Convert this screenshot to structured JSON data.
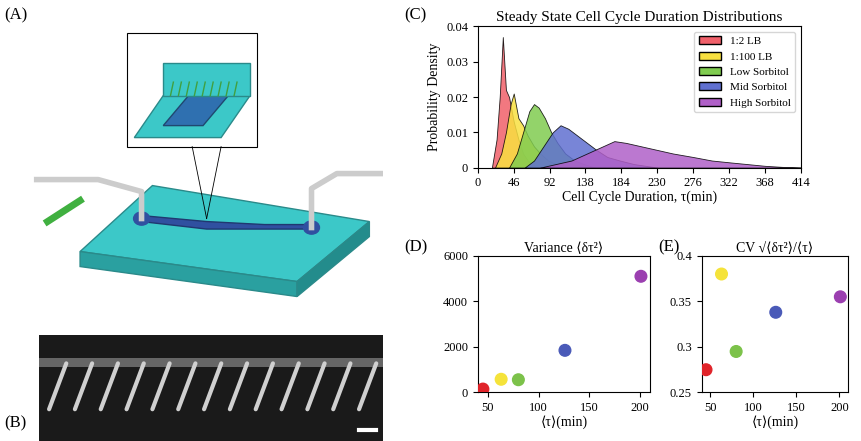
{
  "panel_labels": [
    "(A)",
    "(B)",
    "(C)",
    "(D)",
    "(E)"
  ],
  "chart_data": [
    {
      "type": "area",
      "title": "Steady State Cell Cycle Duration Distributions",
      "x_label": "Cell Cycle Duration, τ(min)",
      "y_label": "Probability Density",
      "xlim": [
        0,
        414
      ],
      "xticks": [
        0,
        46,
        92,
        138,
        184,
        230,
        276,
        322,
        368,
        414
      ],
      "ylim": [
        0,
        0.04
      ],
      "yticks": [
        0,
        0.01,
        0.02,
        0.03,
        0.04
      ],
      "legend": "upper right",
      "series": [
        {
          "name": "1:2 LB",
          "color": "#f0606a",
          "x": [
            18,
            24,
            28,
            32,
            36,
            40,
            46,
            52,
            58,
            64,
            70,
            76
          ],
          "values": [
            0,
            0.008,
            0.02,
            0.037,
            0.022,
            0.02,
            0.013,
            0.008,
            0.004,
            0.002,
            0.001,
            0
          ]
        },
        {
          "name": "1:100 LB",
          "color": "#f8e040",
          "x": [
            22,
            30,
            36,
            42,
            46,
            52,
            58,
            64,
            72,
            80,
            90,
            100,
            110
          ],
          "values": [
            0,
            0.004,
            0.01,
            0.018,
            0.021,
            0.014,
            0.012,
            0.009,
            0.006,
            0.004,
            0.002,
            0.001,
            0
          ]
        },
        {
          "name": "Low Sorbitol",
          "color": "#80cc50",
          "x": [
            40,
            50,
            58,
            66,
            72,
            78,
            86,
            94,
            102,
            112,
            124,
            136,
            150
          ],
          "values": [
            0,
            0.004,
            0.01,
            0.016,
            0.018,
            0.017,
            0.014,
            0.01,
            0.007,
            0.004,
            0.002,
            0.001,
            0
          ]
        },
        {
          "name": "Mid Sorbitol",
          "color": "#6070d0",
          "x": [
            60,
            72,
            84,
            96,
            106,
            116,
            128,
            140,
            152,
            166,
            182,
            200,
            215,
            230
          ],
          "values": [
            0,
            0.002,
            0.006,
            0.01,
            0.012,
            0.011,
            0.009,
            0.007,
            0.005,
            0.003,
            0.002,
            0.001,
            0.0005,
            0
          ]
        },
        {
          "name": "High Sorbitol",
          "color": "#b060c8",
          "x": [
            80,
            100,
            120,
            140,
            160,
            175,
            190,
            210,
            230,
            250,
            276,
            300,
            322,
            345,
            368,
            390,
            414
          ],
          "values": [
            0,
            0.001,
            0.002,
            0.004,
            0.006,
            0.0075,
            0.007,
            0.006,
            0.005,
            0.004,
            0.003,
            0.002,
            0.0015,
            0.001,
            0.0005,
            0.0002,
            0
          ]
        }
      ]
    },
    {
      "type": "scatter",
      "title": "Variance ⟨δτ²⟩",
      "x_label": "⟨τ⟩(min)",
      "x": [
        45,
        63,
        80,
        126,
        201
      ],
      "values": [
        150,
        580,
        560,
        1850,
        5100
      ],
      "colors": [
        "#e0242a",
        "#f5e33a",
        "#7cc24a",
        "#4a5ab8",
        "#9b3fb0"
      ],
      "xlim": [
        40,
        210
      ],
      "xticks": [
        50,
        100,
        150,
        200
      ],
      "ylim": [
        0,
        6000
      ],
      "yticks": [
        0,
        2000,
        4000,
        6000
      ]
    },
    {
      "type": "scatter",
      "title": "CV √⟨δτ²⟩/⟨τ⟩",
      "x_label": "⟨τ⟩(min)",
      "x": [
        45,
        63,
        80,
        126,
        201
      ],
      "values": [
        0.275,
        0.38,
        0.295,
        0.338,
        0.355
      ],
      "colors": [
        "#e0242a",
        "#f5e33a",
        "#7cc24a",
        "#4a5ab8",
        "#9b3fb0"
      ],
      "xlim": [
        40,
        210
      ],
      "xticks": [
        50,
        100,
        150,
        200
      ],
      "ylim": [
        0.25,
        0.4
      ],
      "yticks": [
        0.25,
        0.3,
        0.35,
        0.4
      ]
    }
  ]
}
